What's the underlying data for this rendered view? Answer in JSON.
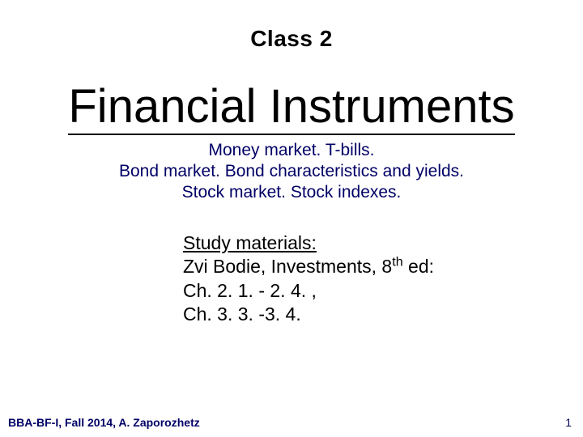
{
  "header": {
    "class_label": "Class 2"
  },
  "title": "Financial Instruments",
  "subtitle": {
    "line1": "Money market. T-bills.",
    "line2": "Bond market. Bond characteristics and yields.",
    "line3": "Stock market. Stock indexes."
  },
  "study": {
    "heading": "Study materials:",
    "line1_a": "Zvi Bodie, Investments, 8",
    "line1_sup": "th",
    "line1_b": " ed:",
    "line2": "Ch. 2. 1. - 2. 4. ,",
    "line3": "Ch. 3. 3. -3. 4."
  },
  "footer": {
    "left": "BBA-BF-I, Fall 2014, A. Zaporozhetz",
    "page": "1"
  },
  "colors": {
    "background": "#ffffff",
    "text": "#000000",
    "accent": "#000066"
  }
}
